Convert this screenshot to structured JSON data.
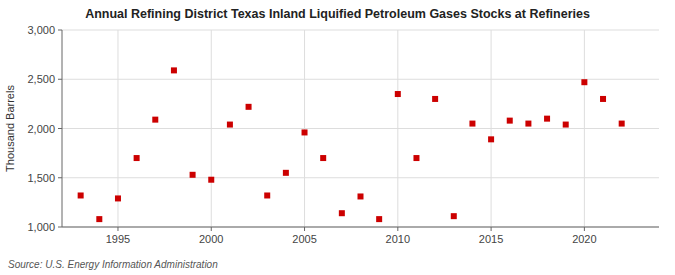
{
  "chart_data": {
    "type": "scatter",
    "title": "Annual Refining District Texas Inland Liquified Petroleum Gases Stocks at Refineries",
    "y_label": "Thousand Barrels",
    "source": "Source: U.S. Energy Information Administration",
    "color": "#cc0000",
    "marker": "square",
    "grid": true,
    "xlim": [
      1992,
      2024
    ],
    "ylim": [
      1000,
      3000
    ],
    "xticks": [
      1995,
      2000,
      2005,
      2010,
      2015,
      2020
    ],
    "yticks": [
      {
        "value": 1000,
        "label": "1,000"
      },
      {
        "value": 1500,
        "label": "1,500"
      },
      {
        "value": 2000,
        "label": "2,000"
      },
      {
        "value": 2500,
        "label": "2,500"
      },
      {
        "value": 3000,
        "label": "3,000"
      }
    ],
    "x": [
      1993,
      1994,
      1995,
      1996,
      1997,
      1998,
      1999,
      2000,
      2001,
      2002,
      2003,
      2004,
      2005,
      2006,
      2007,
      2008,
      2009,
      2010,
      2011,
      2012,
      2013,
      2014,
      2015,
      2016,
      2017,
      2018,
      2019,
      2020,
      2021,
      2022
    ],
    "values": [
      1320,
      1080,
      1290,
      1700,
      2090,
      2590,
      1530,
      1480,
      2040,
      2220,
      1320,
      1550,
      1960,
      1700,
      1140,
      1310,
      1080,
      2350,
      1700,
      2300,
      1110,
      2050,
      1890,
      2080,
      2050,
      2100,
      2040,
      2470,
      2300,
      2050
    ]
  }
}
